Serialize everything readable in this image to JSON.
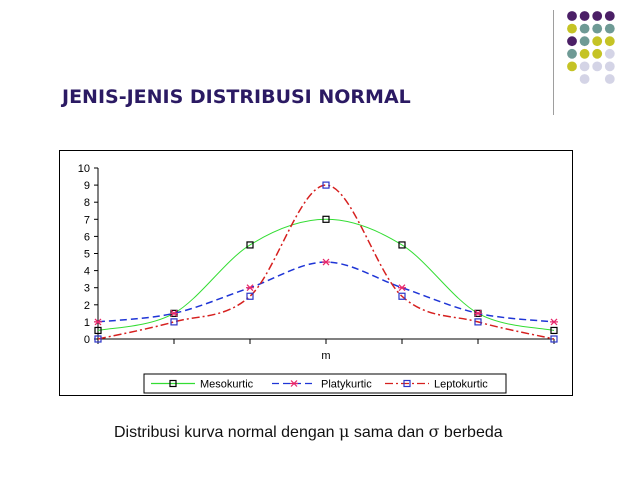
{
  "slide": {
    "title": "JENIS-JENIS DISTRIBUSI NORMAL",
    "caption_pre": "Distribusi kurva normal dengan ",
    "caption_mu": "μ",
    "caption_mid": " sama dan ",
    "caption_sigma": "σ",
    "caption_post": " berbeda"
  },
  "decoration": {
    "colors": {
      "purple": "#4b1f66",
      "teal": "#6e9a95",
      "olive": "#c5c325",
      "lavender": "#d4d4e6"
    },
    "grid_colors": [
      [
        "purple",
        "purple",
        "purple",
        "purple"
      ],
      [
        "olive",
        "teal",
        "teal",
        "teal"
      ],
      [
        "purple",
        "teal",
        "olive",
        "olive"
      ],
      [
        "teal",
        "olive",
        "olive",
        "lavender"
      ],
      [
        "olive",
        "lavender",
        "lavender",
        "lavender"
      ],
      [
        "",
        "lavender",
        "",
        "lavender"
      ]
    ]
  },
  "chart_data": {
    "type": "line",
    "categories": [
      "",
      "",
      "",
      "m",
      "",
      "",
      ""
    ],
    "xlabel": "",
    "ylabel": "",
    "ylim": [
      0,
      10
    ],
    "yticks": [
      0,
      1,
      2,
      3,
      4,
      5,
      6,
      7,
      8,
      9,
      10
    ],
    "legend_position": "bottom",
    "grid": false,
    "series": [
      {
        "name": "Mesokurtic",
        "color": "#33dd33",
        "dash": "solid",
        "marker": "square",
        "marker_color": "#000000",
        "values": [
          0.5,
          1.5,
          5.5,
          7,
          5.5,
          1.5,
          0.5
        ]
      },
      {
        "name": "Platykurtic",
        "color": "#1f35d6",
        "dash": "dashed",
        "marker": "asterisk",
        "marker_color": "#e8276a",
        "values": [
          1,
          1.5,
          3,
          4.5,
          3,
          1.5,
          1
        ]
      },
      {
        "name": "Leptokurtic",
        "color": "#d6201f",
        "dash": "dashdot",
        "marker": "square",
        "marker_color": "#2b35c8",
        "values": [
          0,
          1,
          2.5,
          9,
          2.5,
          1,
          0
        ]
      }
    ]
  }
}
